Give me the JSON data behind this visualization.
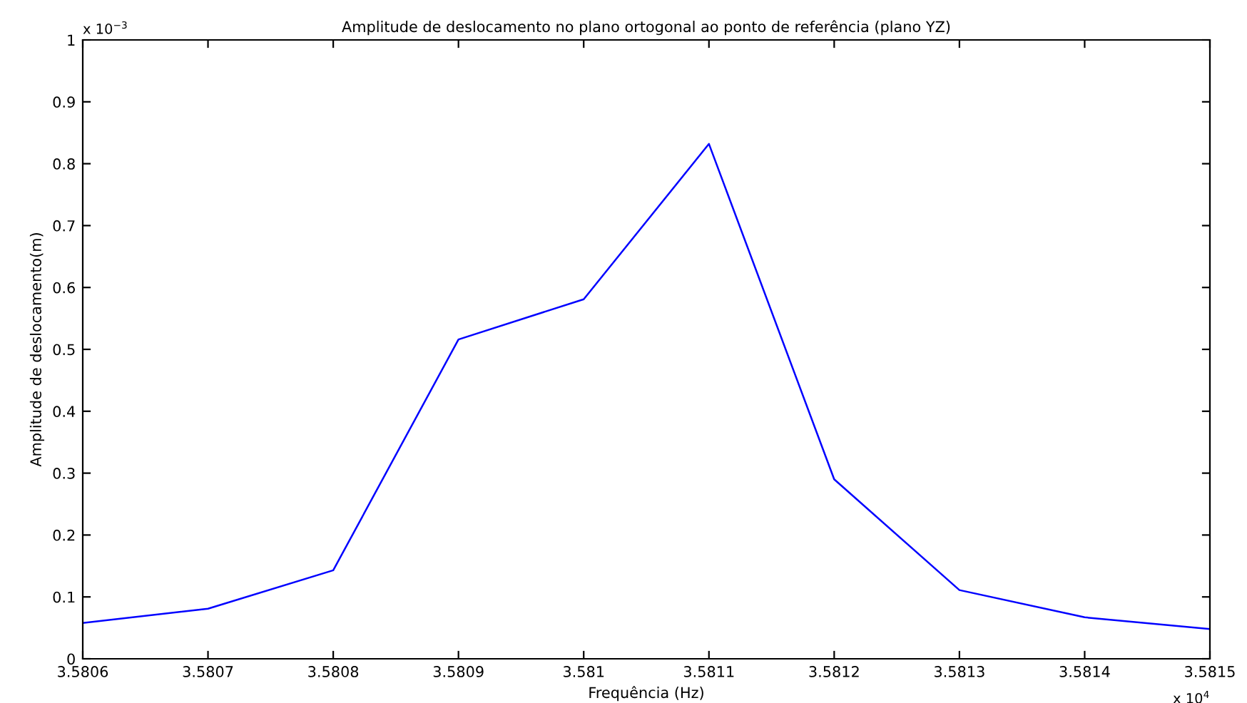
{
  "chart_data": {
    "type": "line",
    "title": "Amplitude de deslocamento no plano ortogonal ao ponto de referência (plano YZ)",
    "xlabel": "Frequência (Hz)",
    "ylabel": "Amplitude de deslocamento(m)",
    "annotations": [
      "x 10$^{−3}$",
      "x 10$^{4}$"
    ],
    "x": [
      3.5806,
      3.5807,
      3.5808,
      3.5809,
      3.581,
      3.5811,
      3.5812,
      3.5813,
      3.5814,
      3.5815
    ],
    "series": [
      {
        "color": "#0000ff",
        "values": [
          0.058,
          0.081,
          0.143,
          0.516,
          0.581,
          0.832,
          0.29,
          0.111,
          0.067,
          0.048
        ]
      }
    ],
    "xlim": [
      3.5806,
      3.5815
    ],
    "ylim": [
      0,
      1
    ],
    "xticks": [
      3.5806,
      3.5807,
      3.5808,
      3.5809,
      3.581,
      3.5811,
      3.5812,
      3.5813,
      3.5814,
      3.5815
    ],
    "yticks": [
      0,
      0.1,
      0.2,
      0.3,
      0.4,
      0.5,
      0.6,
      0.7,
      0.8,
      0.9,
      1
    ],
    "grid": false,
    "legend": false,
    "marker": "none",
    "line_style": "solid"
  }
}
